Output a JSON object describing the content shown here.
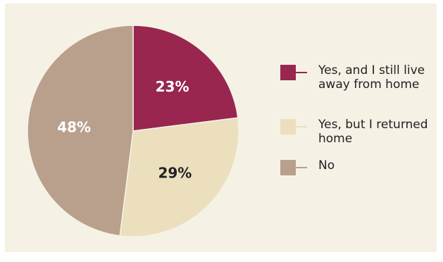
{
  "chart_data": {
    "type": "pie",
    "slices": [
      {
        "name": "Yes, and I still live away from home",
        "value": 23,
        "label": "23%",
        "color": "#98264f",
        "label_color": "#ffffff"
      },
      {
        "name": "Yes, but I returned home",
        "value": 29,
        "label": "29%",
        "color": "#ebdfbd",
        "label_color": "#222222"
      },
      {
        "name": "No",
        "value": 48,
        "label": "48%",
        "color": "#b8a08d",
        "label_color": "#ffffff"
      }
    ],
    "legend_position": "right"
  },
  "colors": {
    "panel_background": "#f6f1e5",
    "slice_border": "#f6f1e5"
  }
}
